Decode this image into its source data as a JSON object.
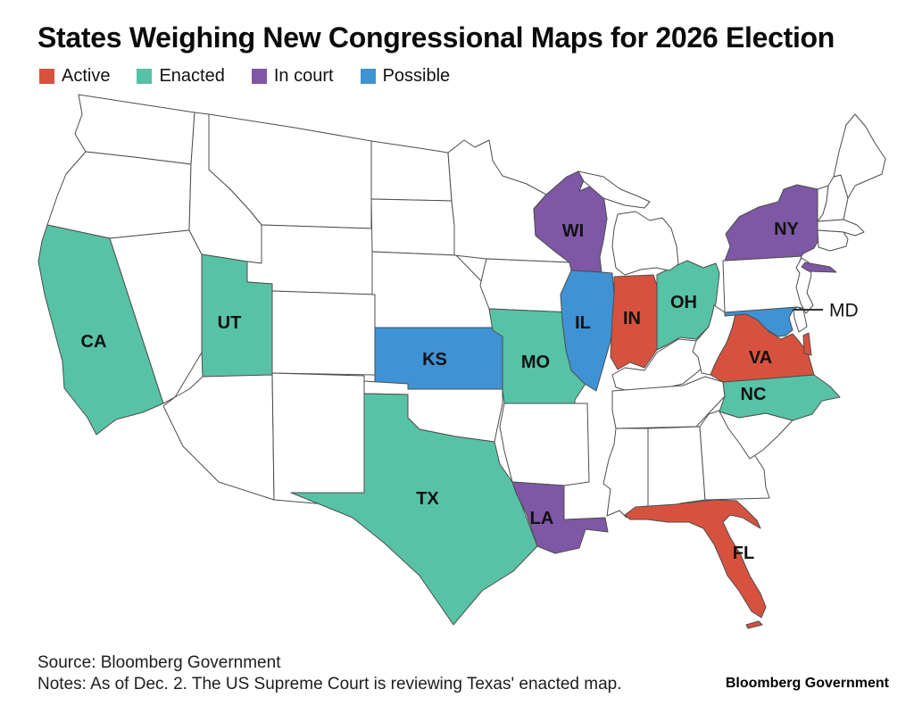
{
  "title": "States Weighing New Congressional Maps for 2026 Election",
  "legend": {
    "items": [
      {
        "label": "Active",
        "status": "active",
        "color": "#d7523e"
      },
      {
        "label": "Enacted",
        "status": "enacted",
        "color": "#57c2a6"
      },
      {
        "label": "In court",
        "status": "in_court",
        "color": "#7e57a5"
      },
      {
        "label": "Possible",
        "status": "possible",
        "color": "#3f93d4"
      }
    ]
  },
  "chart_data": {
    "type": "choropleth_map",
    "region": "United States (contiguous 48 states)",
    "title": "States Weighing New Congressional Maps for 2026 Election",
    "categories": [
      {
        "label": "Active",
        "color": "#d7523e"
      },
      {
        "label": "Enacted",
        "color": "#57c2a6"
      },
      {
        "label": "In court",
        "color": "#7e57a5"
      },
      {
        "label": "Possible",
        "color": "#3f93d4"
      }
    ],
    "states": [
      {
        "abbr": "CA",
        "status": "enacted"
      },
      {
        "abbr": "UT",
        "status": "enacted"
      },
      {
        "abbr": "KS",
        "status": "possible"
      },
      {
        "abbr": "MO",
        "status": "enacted"
      },
      {
        "abbr": "TX",
        "status": "enacted"
      },
      {
        "abbr": "LA",
        "status": "in_court"
      },
      {
        "abbr": "FL",
        "status": "active"
      },
      {
        "abbr": "NC",
        "status": "enacted"
      },
      {
        "abbr": "VA",
        "status": "active"
      },
      {
        "abbr": "MD",
        "status": "possible"
      },
      {
        "abbr": "OH",
        "status": "enacted"
      },
      {
        "abbr": "IN",
        "status": "active"
      },
      {
        "abbr": "IL",
        "status": "possible"
      },
      {
        "abbr": "WI",
        "status": "in_court"
      },
      {
        "abbr": "NY",
        "status": "in_court"
      }
    ],
    "unlabeled_states_status": "none (white fill)"
  },
  "map": {
    "md_callout_label": "MD"
  },
  "footer": {
    "source": "Source: Bloomberg Government",
    "notes": "Notes: As of Dec. 2. The US Supreme Court is reviewing Texas' enacted map.",
    "brand": "Bloomberg Government"
  }
}
